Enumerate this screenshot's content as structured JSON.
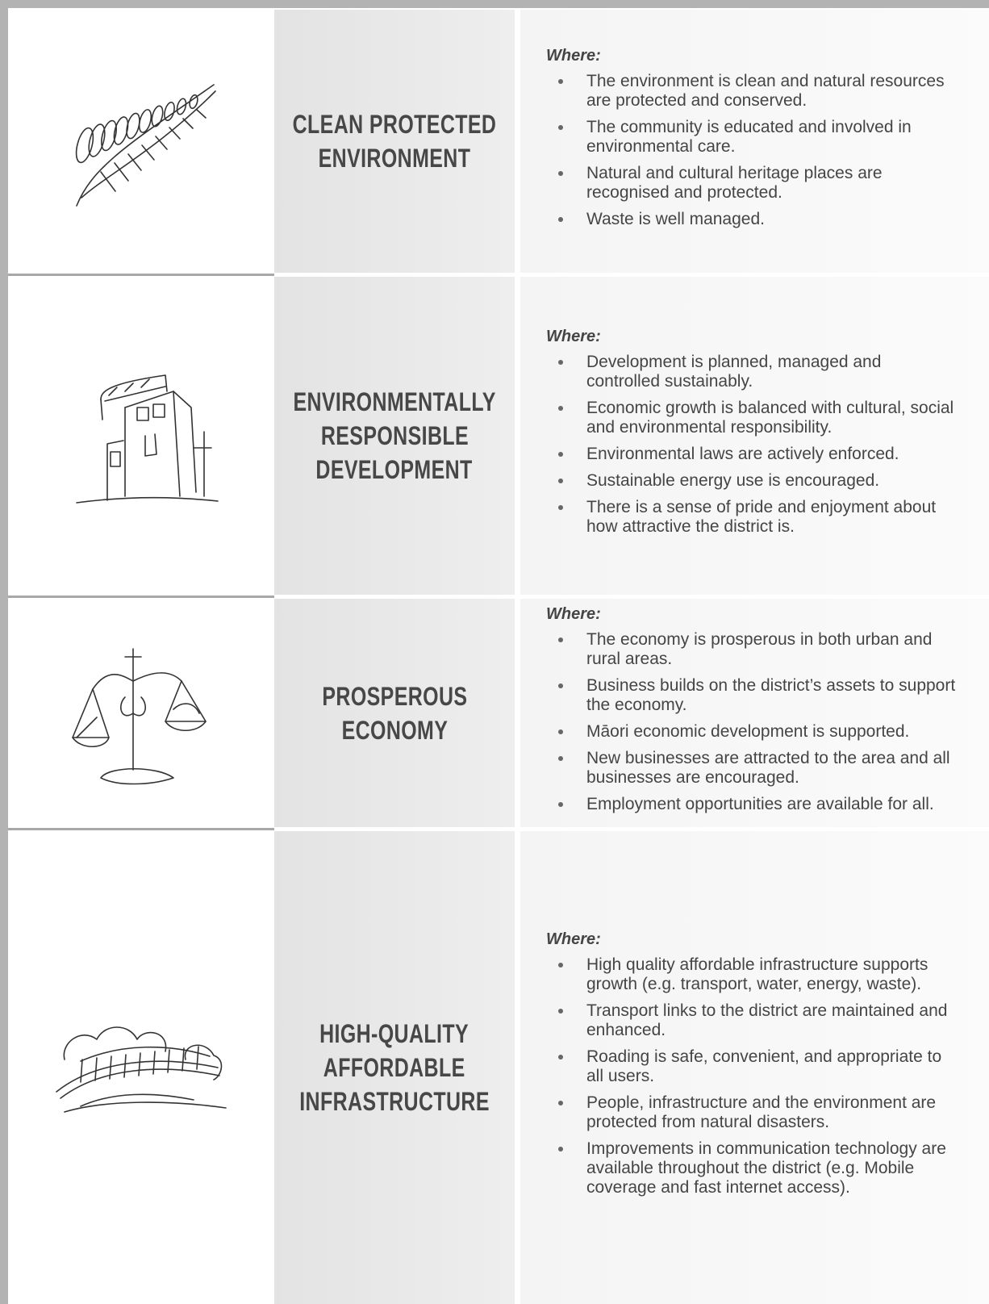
{
  "rows": [
    {
      "title": [
        "CLEAN PROTECTED",
        "ENVIRONMENT"
      ],
      "where": "Where:",
      "bullets": [
        "The environment is clean and natural resources are protected and conserved.",
        "The community is educated and involved in environmental care.",
        "Natural and cultural heritage places are recognised and protected.",
        "Waste is well managed."
      ]
    },
    {
      "title": [
        "ENVIRONMENTALLY",
        "RESPONSIBLE",
        "DEVELOPMENT"
      ],
      "where": "Where:",
      "bullets": [
        "Development is planned, managed and controlled sustainably.",
        "Economic growth is balanced with cultural, social and environmental responsibility.",
        "Environmental laws are actively enforced.",
        "Sustainable energy use is encouraged.",
        "There is a sense of pride and enjoyment about how attractive the district is."
      ]
    },
    {
      "title": [
        "PROSPEROUS",
        "ECONOMY"
      ],
      "where": "Where:",
      "bullets": [
        "The economy is prosperous in both urban and rural areas.",
        "Business builds on the district’s assets to support the economy.",
        "Māori economic development is supported.",
        "New businesses are attracted to the area and all businesses are encouraged.",
        "Employment opportunities are available for all."
      ]
    },
    {
      "title": [
        "HIGH-QUALITY",
        "AFFORDABLE",
        "INFRASTRUCTURE"
      ],
      "where": "Where:",
      "bullets": [
        "High quality affordable infrastructure supports growth (e.g. transport, water, energy, waste).",
        "Transport links to the district are maintained and enhanced.",
        "Roading is safe, convenient, and appropriate to all users.",
        "People, infrastructure and the environment are protected from natural disasters.",
        "Improvements in communication technology are available throughout the district (e.g. Mobile coverage and fast internet access)."
      ]
    }
  ]
}
